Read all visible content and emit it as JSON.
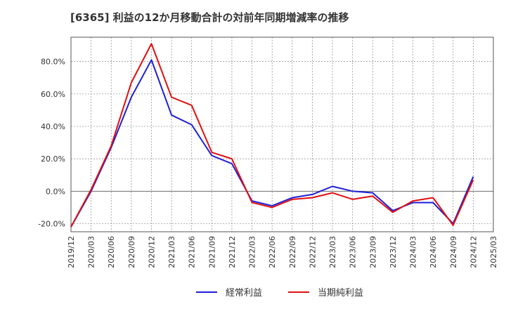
{
  "chart_data": {
    "type": "line",
    "title": "[6365]  利益の12か月移動合計の対前年同期増減率の推移",
    "xlabel": "",
    "ylabel": "",
    "ylim": [
      -25,
      95
    ],
    "yticks": [
      -20,
      0,
      20,
      40,
      60,
      80
    ],
    "ytick_labels": [
      "-20.0%",
      "0.0%",
      "20.0%",
      "40.0%",
      "60.0%",
      "80.0%"
    ],
    "x_tick_labels": [
      "2019/12",
      "2020/03",
      "2020/06",
      "2020/09",
      "2020/12",
      "2021/03",
      "2021/06",
      "2021/09",
      "2021/12",
      "2022/03",
      "2022/06",
      "2022/09",
      "2022/12",
      "2023/03",
      "2023/06",
      "2023/09",
      "2023/12",
      "2024/03",
      "2024/06",
      "2024/09",
      "2024/12",
      "2025/03"
    ],
    "grid": true,
    "legend_position": "bottom",
    "series": [
      {
        "name": "経常利益",
        "color": "#1f1fd6",
        "values": [
          -22,
          0,
          27,
          58,
          81,
          47,
          41,
          22,
          17,
          -6,
          -9,
          -4,
          -2,
          3,
          0,
          -1,
          -12,
          -7,
          -7,
          -20,
          9,
          null
        ]
      },
      {
        "name": "当期純利益",
        "color": "#e01010",
        "values": [
          -22,
          1,
          28,
          67,
          91,
          58,
          53,
          24,
          20,
          -7,
          -10,
          -5,
          -4,
          -1,
          -5,
          -3,
          -13,
          -6,
          -4,
          -21,
          7,
          null
        ]
      }
    ]
  }
}
